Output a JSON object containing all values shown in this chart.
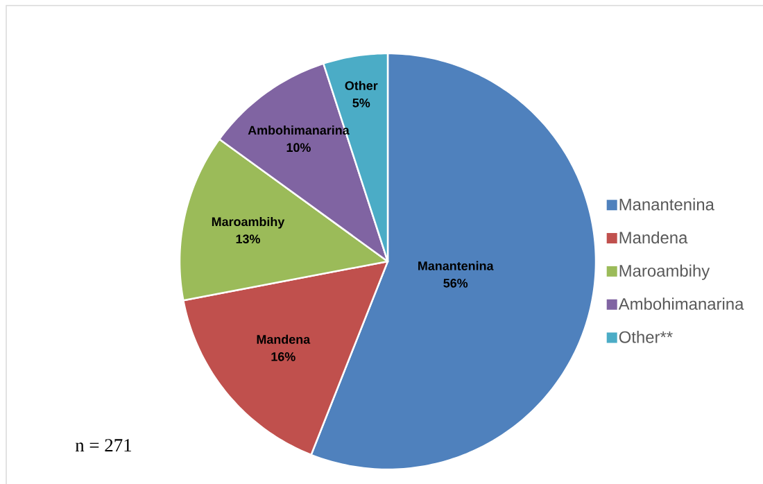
{
  "chart_data": {
    "type": "pie",
    "categories": [
      "Manantenina",
      "Mandena",
      "Maroambihy",
      "Ambohimanarina",
      "Other**"
    ],
    "values": [
      56,
      16,
      13,
      10,
      5
    ],
    "colors": [
      "#4f81bd",
      "#c0504d",
      "#9bbb59",
      "#8064a2",
      "#4bacc6"
    ],
    "value_labels": [
      "Manantenina 56%",
      "Mandena 16%",
      "Maroambihy 13%",
      "Ambohimanarina 10%",
      "Other 5%"
    ],
    "annotations": [
      "n = 271"
    ],
    "legend": "right"
  }
}
